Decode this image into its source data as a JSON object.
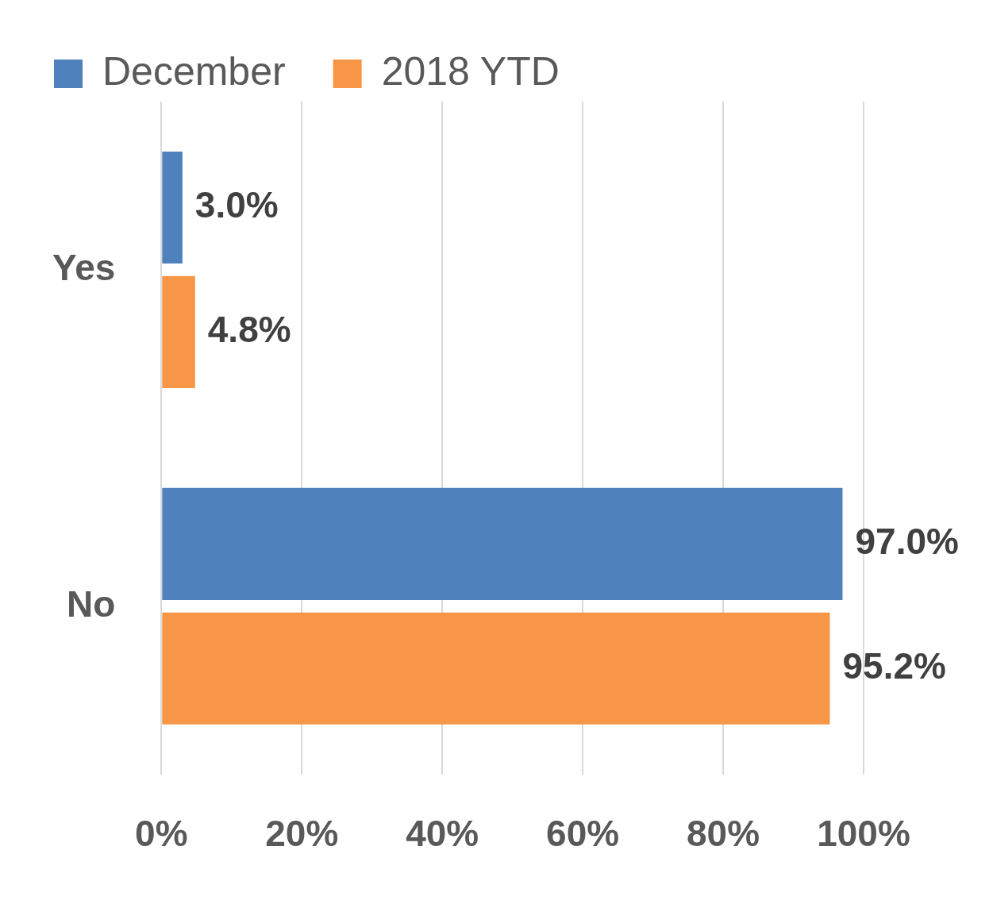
{
  "chart_data": {
    "type": "bar",
    "orientation": "horizontal",
    "categories": [
      "Yes",
      "No"
    ],
    "series": [
      {
        "name": "December",
        "color": "#4f81bd",
        "values": [
          3.0,
          97.0
        ],
        "value_labels": [
          "3.0%",
          "97.0%"
        ]
      },
      {
        "name": "2018 YTD",
        "color": "#f79646",
        "values": [
          4.8,
          95.2
        ],
        "value_labels": [
          "4.8%",
          "95.2%"
        ]
      }
    ],
    "xlim": [
      0,
      100
    ],
    "xticks": [
      {
        "value": 0,
        "label": "0%"
      },
      {
        "value": 20,
        "label": "20%"
      },
      {
        "value": 40,
        "label": "40%"
      },
      {
        "value": 60,
        "label": "60%"
      },
      {
        "value": 80,
        "label": "80%"
      },
      {
        "value": 100,
        "label": "100%"
      }
    ],
    "grid": "x",
    "legend": "top left"
  }
}
